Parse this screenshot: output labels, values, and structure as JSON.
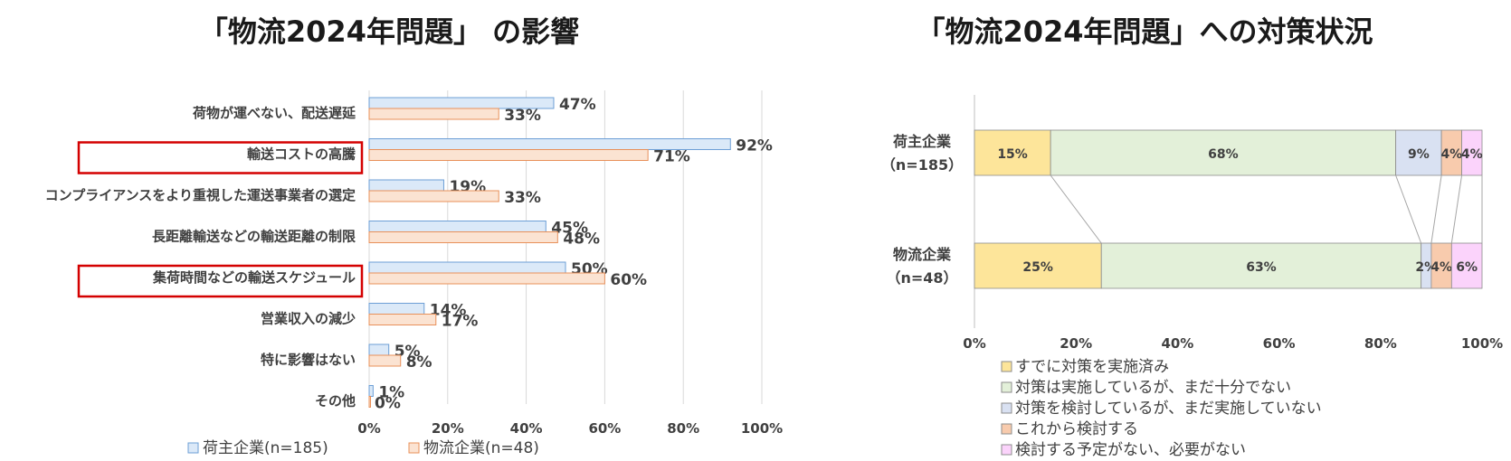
{
  "left_chart": {
    "title": "「物流2024年問題」 の影響",
    "colors": {
      "series0_fill": "#dbe9f8",
      "series0_stroke": "#6d9fd6",
      "series1_fill": "#fbe3d2",
      "series1_stroke": "#e8905a",
      "highlight": "#d40000",
      "grid": "#d9d9d9"
    },
    "highlighted_categories": [
      1,
      4
    ]
  },
  "right_chart": {
    "title": "「物流2024年問題」への対策状況",
    "colors": [
      "#fde59a",
      "#e3f0d9",
      "#d9e1f2",
      "#f8cbad",
      "#fbd3fb"
    ],
    "bar_stroke": "#8c8c8c",
    "group_labels": [
      [
        "荷主企業",
        "（n=185）"
      ],
      [
        "物流企業",
        "（n=48）"
      ]
    ]
  },
  "chart_data": [
    {
      "type": "bar",
      "orientation": "horizontal",
      "title": "「物流2024年問題」 の影響",
      "categories": [
        "荷物が運べない、配送遅延",
        "輸送コストの高騰",
        "コンプライアンスをより重視した運送事業者の選定",
        "長距離輸送などの輸送距離の制限",
        "集荷時間などの輸送スケジュール",
        "営業収入の減少",
        "特に影響はない",
        "その他"
      ],
      "series": [
        {
          "name": "荷主企業(n=185)",
          "values": [
            47,
            92,
            19,
            45,
            50,
            14,
            5,
            1
          ]
        },
        {
          "name": "物流企業(n=48)",
          "values": [
            33,
            71,
            33,
            48,
            60,
            17,
            8,
            0
          ]
        }
      ],
      "xlim": [
        0,
        100
      ],
      "xticks": [
        "0%",
        "20%",
        "40%",
        "60%",
        "80%",
        "100%"
      ],
      "grid": true,
      "legend": "bottom"
    },
    {
      "type": "bar",
      "orientation": "horizontal",
      "stacked": "percent",
      "title": "「物流2024年問題」への対策状況",
      "categories": [
        "荷主企業（n=185）",
        "物流企業（n=48）"
      ],
      "series": [
        {
          "name": "すでに対策を実施済み",
          "values": [
            15,
            25
          ]
        },
        {
          "name": "対策は実施しているが、まだ十分でない",
          "values": [
            68,
            63
          ]
        },
        {
          "name": "対策を検討しているが、まだ実施していない",
          "values": [
            9,
            2
          ]
        },
        {
          "name": "これから検討する",
          "values": [
            4,
            4
          ]
        },
        {
          "name": "検討する予定がない、必要がない",
          "values": [
            4,
            6
          ]
        }
      ],
      "xlim": [
        0,
        100
      ],
      "xticks": [
        "0%",
        "20%",
        "40%",
        "60%",
        "80%",
        "100%"
      ],
      "grid": false,
      "legend": "bottom"
    }
  ]
}
